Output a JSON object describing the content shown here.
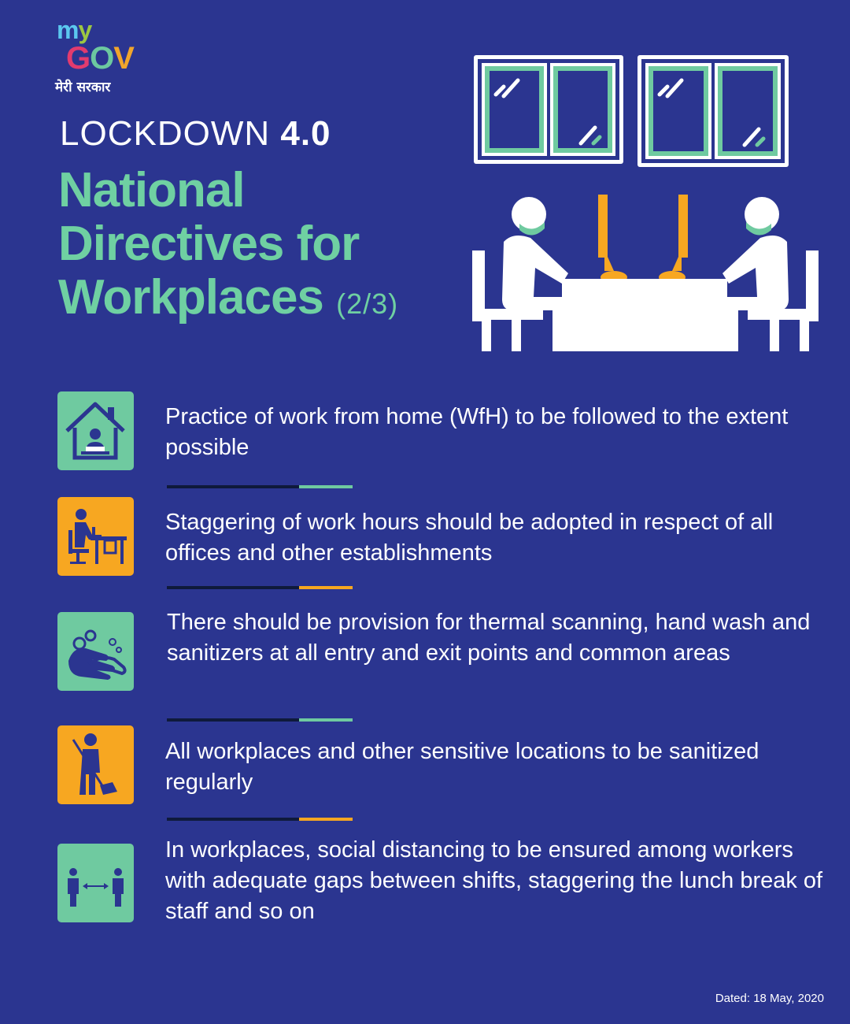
{
  "logo": {
    "my_m": "m",
    "my_y": "y",
    "gov_g": "G",
    "gov_o": "O",
    "gov_v": "V",
    "tagline": "मेरी सरकार"
  },
  "header": {
    "lockdown_label": "LOCKDOWN",
    "lockdown_version": "4.0",
    "title_line1": "National",
    "title_line2": "Directives for",
    "title_line3": "Workplaces",
    "part": "(2/3)"
  },
  "directives": [
    {
      "icon": "work-from-home-icon",
      "text": "Practice of work from home (WfH) to be followed to the extent possible"
    },
    {
      "icon": "office-worker-desk-icon",
      "text": "Staggering of work hours should be adopted in respect of all offices and other establishments"
    },
    {
      "icon": "hand-wash-icon",
      "text": "There should be provision for thermal scanning, hand wash and sanitizers at all entry and exit points and common areas"
    },
    {
      "icon": "sweeping-person-icon",
      "text": "All workplaces and other sensitive locations to be sanitized regularly"
    },
    {
      "icon": "social-distancing-icon",
      "text": "In workplaces, social distancing to be ensured among workers with adequate gaps between shifts, staggering the lunch break of staff and so on"
    }
  ],
  "footer": {
    "dated": "Dated: 18 May, 2020"
  },
  "colors": {
    "background": "#2b3590",
    "green": "#6fcaa0",
    "yellow": "#f7a721",
    "divider_dark": "#0f1a3b"
  }
}
